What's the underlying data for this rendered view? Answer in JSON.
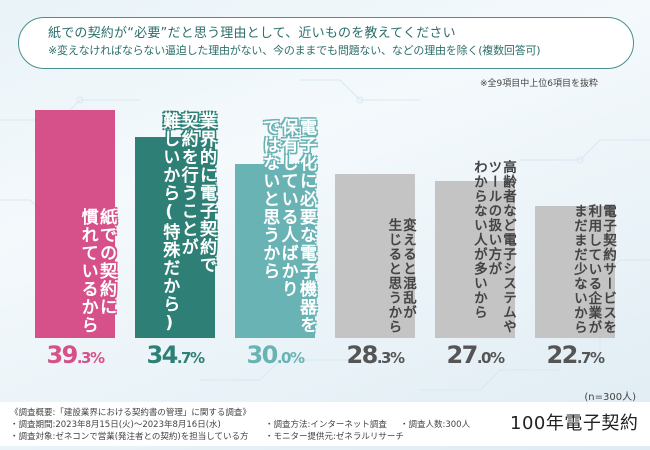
{
  "title": {
    "main": "紙での契約が“必要”だと思う理由として、近いものを教えてください",
    "sub": "※変えなければならない逼迫した理由がない、今のままでも問題ない、などの理由を除く(複数回答可)"
  },
  "note": "※全9項目中上位6項目を抜粋",
  "sample_size": "(n=300人)",
  "chart_data": {
    "type": "bar",
    "title": "紙での契約が“必要”だと思う理由として、近いものを教えてください",
    "subtitle": "※変えなければならない逼迫した理由がない、今のままでも問題ない、などの理由を除く(複数回答可)",
    "xlabel": "",
    "ylabel": "",
    "unit": "%",
    "ylim": [
      0,
      45
    ],
    "grid": false,
    "categories": [
      "紙での契約に慣れているから",
      "業界的に電子契約で契約を行うことが難しいから(特殊だから)",
      "電子化に必要な電子機器を保有している人ばかりではないと思うから",
      "変えると混乱が生じると思うから",
      "高齢者など電子システムやツールの扱い方がわからない人が多いから",
      "電子契約サービスを利用している企業がまだまだ少ないから"
    ],
    "label_lines": [
      [
        "紙での契約に",
        "慣れているから"
      ],
      [
        "業界的に電子契約で",
        "契約を行うことが",
        "難しいから(特殊だから)"
      ],
      [
        "電子化に必要な電子機器を",
        "保有している人ばかり",
        "ではないと思うから"
      ],
      [
        "変えると混乱が",
        "生じると思うから"
      ],
      [
        "高齢者など電子システムや",
        "ツールの扱い方が",
        "わからない人が多いから"
      ],
      [
        "電子契約サービスを",
        "利用している企業が",
        "まだまだ少ないから"
      ]
    ],
    "values": [
      39.3,
      34.7,
      30.0,
      28.3,
      27.0,
      22.7
    ],
    "value_labels": [
      {
        "int": "39",
        "dec": ".3%"
      },
      {
        "int": "34",
        "dec": ".7%"
      },
      {
        "int": "30",
        "dec": ".0%"
      },
      {
        "int": "28",
        "dec": ".3%"
      },
      {
        "int": "27",
        "dec": ".0%"
      },
      {
        "int": "22",
        "dec": ".7%"
      }
    ],
    "colors": [
      "#d6518a",
      "#2e8077",
      "#6ab3b5",
      "#c4c4c4",
      "#c4c4c4",
      "#c4c4c4"
    ],
    "value_colors": [
      "#d6518a",
      "#2e8077",
      "#6ab3b5",
      "#555555",
      "#555555",
      "#555555"
    ]
  },
  "footer": {
    "overview": "《調査概要:「建設業界における契約書の管理」に関する調査》",
    "period": "・調査期間:2023年8月15日(火)〜2023年8月16日(水)",
    "target": "・調査対象:ゼネコンで営業(発注者との契約)を担当している方",
    "method": "・調査方法:インターネット調査",
    "provider": "・モニター提供元:ゼネラルリサーチ",
    "count": "・調査人数:300人",
    "logo": "100年電子契約"
  }
}
